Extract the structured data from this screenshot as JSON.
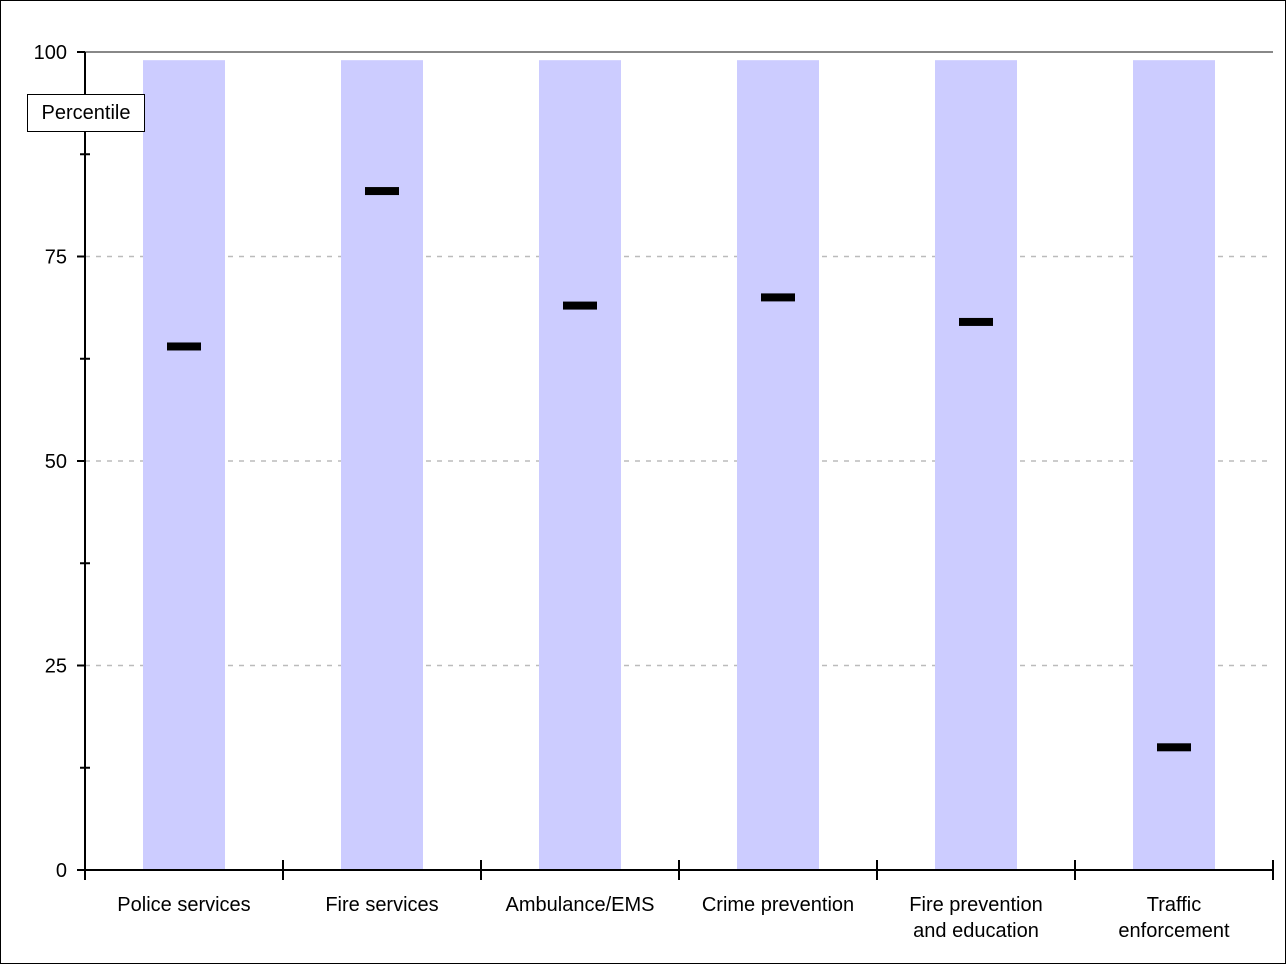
{
  "chart_data": {
    "type": "bar",
    "ylabel": "Percentile",
    "ylim": [
      0,
      100
    ],
    "yticks": [
      0,
      25,
      50,
      75,
      100
    ],
    "grid": "horizontal dashed at labeled ticks",
    "categories": [
      [
        "Police services"
      ],
      [
        "Fire services"
      ],
      [
        "Ambulance/EMS"
      ],
      [
        "Crime prevention"
      ],
      [
        "Fire prevention",
        "and education"
      ],
      [
        "Traffic",
        "enforcement"
      ]
    ],
    "range_top": 99,
    "values": [
      64,
      83,
      69,
      70,
      67,
      15
    ],
    "colors": {
      "range_bar": "#ccccff",
      "marker": "#000000",
      "grid": "#bbbbbb",
      "axis": "#000000"
    }
  }
}
